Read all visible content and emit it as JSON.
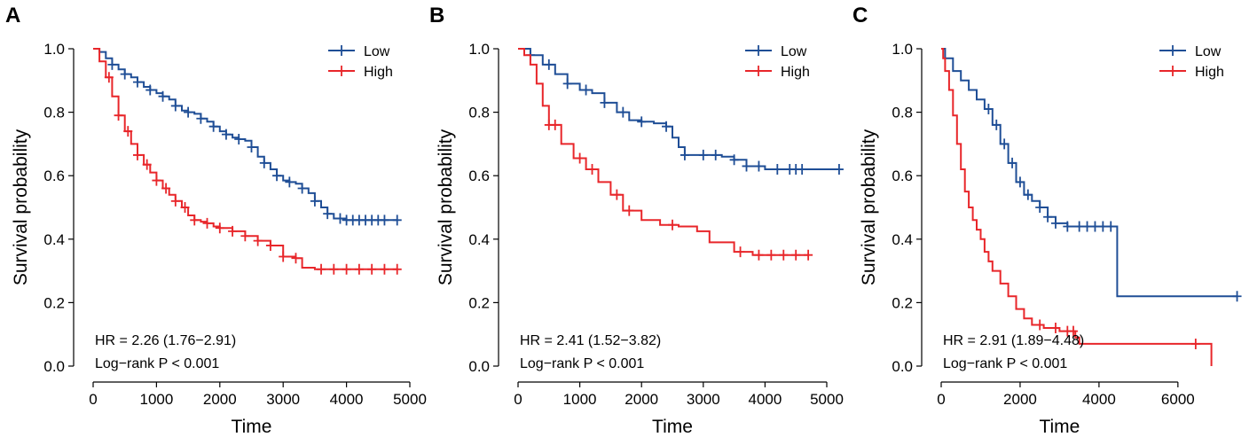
{
  "figure": {
    "panel_labels": [
      "A",
      "B",
      "C"
    ],
    "colors": {
      "low": "#1f4e96",
      "high": "#e8262a",
      "axis": "#000000"
    }
  },
  "chart_data": [
    {
      "type": "line",
      "panel": "A",
      "title": "",
      "xlabel": "Time",
      "ylabel": "Survival probability",
      "xlim": [
        0,
        5000
      ],
      "ylim": [
        0,
        1.0
      ],
      "xticks": [
        0,
        1000,
        2000,
        3000,
        4000,
        5000
      ],
      "yticks": [
        0.0,
        0.2,
        0.4,
        0.6,
        0.8,
        1.0
      ],
      "xtick_labels": [
        "0",
        "1000",
        "2000",
        "3000",
        "4000",
        "5000"
      ],
      "ytick_labels": [
        "0.0",
        "0.2",
        "0.4",
        "0.6",
        "0.8",
        "1.0"
      ],
      "legend": {
        "position": "top-right",
        "entries": [
          "Low",
          "High"
        ]
      },
      "annotations": [
        "HR = 2.26 (1.76−2.91)",
        "Log−rank P < 0.001"
      ],
      "series": [
        {
          "name": "Low",
          "x": [
            0,
            100,
            200,
            300,
            400,
            500,
            600,
            700,
            800,
            900,
            1000,
            1100,
            1200,
            1300,
            1400,
            1500,
            1600,
            1700,
            1800,
            1900,
            2000,
            2100,
            2200,
            2300,
            2400,
            2500,
            2600,
            2700,
            2800,
            2900,
            3000,
            3100,
            3200,
            3300,
            3400,
            3500,
            3600,
            3700,
            3800,
            4000,
            4200,
            4800
          ],
          "y": [
            1.0,
            0.99,
            0.97,
            0.95,
            0.935,
            0.92,
            0.91,
            0.895,
            0.88,
            0.87,
            0.86,
            0.85,
            0.84,
            0.82,
            0.805,
            0.8,
            0.795,
            0.78,
            0.77,
            0.755,
            0.74,
            0.73,
            0.72,
            0.715,
            0.71,
            0.69,
            0.66,
            0.64,
            0.62,
            0.6,
            0.585,
            0.58,
            0.575,
            0.56,
            0.545,
            0.52,
            0.5,
            0.48,
            0.465,
            0.46,
            0.46,
            0.46
          ],
          "censor_x": [
            300,
            500,
            700,
            900,
            1100,
            1300,
            1500,
            1700,
            1900,
            2100,
            2300,
            2500,
            2700,
            2900,
            3100,
            3300,
            3500,
            3700,
            3900,
            4000,
            4100,
            4200,
            4300,
            4400,
            4500,
            4600,
            4800
          ]
        },
        {
          "name": "High",
          "x": [
            0,
            100,
            200,
            300,
            400,
            500,
            600,
            700,
            800,
            900,
            1000,
            1100,
            1200,
            1300,
            1400,
            1500,
            1600,
            1700,
            1800,
            1900,
            2000,
            2200,
            2400,
            2600,
            2800,
            3000,
            3200,
            3300,
            3500,
            4000,
            4800
          ],
          "y": [
            1.0,
            0.96,
            0.91,
            0.85,
            0.79,
            0.74,
            0.7,
            0.665,
            0.635,
            0.61,
            0.585,
            0.56,
            0.54,
            0.52,
            0.5,
            0.475,
            0.46,
            0.455,
            0.45,
            0.44,
            0.435,
            0.425,
            0.41,
            0.395,
            0.38,
            0.345,
            0.34,
            0.31,
            0.305,
            0.305,
            0.305
          ],
          "censor_x": [
            250,
            400,
            550,
            700,
            850,
            1000,
            1150,
            1300,
            1450,
            1600,
            1800,
            2000,
            2200,
            2400,
            2600,
            2800,
            3000,
            3200,
            3600,
            3800,
            4000,
            4200,
            4400,
            4600,
            4800
          ]
        }
      ]
    },
    {
      "type": "line",
      "panel": "B",
      "title": "",
      "xlabel": "Time",
      "ylabel": "Survival probability",
      "xlim": [
        0,
        5000
      ],
      "ylim": [
        0,
        1.0
      ],
      "xticks": [
        0,
        1000,
        2000,
        3000,
        4000,
        5000
      ],
      "yticks": [
        0.0,
        0.2,
        0.4,
        0.6,
        0.8,
        1.0
      ],
      "xtick_labels": [
        "0",
        "1000",
        "2000",
        "3000",
        "4000",
        "5000"
      ],
      "ytick_labels": [
        "0.0",
        "0.2",
        "0.4",
        "0.6",
        "0.8",
        "1.0"
      ],
      "legend": {
        "position": "top-right",
        "entries": [
          "Low",
          "High"
        ]
      },
      "annotations": [
        "HR = 2.41 (1.52−3.82)",
        "Log−rank P < 0.001"
      ],
      "series": [
        {
          "name": "Low",
          "x": [
            0,
            200,
            400,
            600,
            800,
            1000,
            1200,
            1400,
            1600,
            1800,
            2000,
            2200,
            2400,
            2500,
            2600,
            2700,
            3000,
            3300,
            3500,
            3700,
            4000,
            4500,
            5200
          ],
          "y": [
            1.0,
            0.98,
            0.95,
            0.92,
            0.89,
            0.87,
            0.86,
            0.83,
            0.8,
            0.775,
            0.77,
            0.765,
            0.755,
            0.72,
            0.69,
            0.665,
            0.665,
            0.66,
            0.65,
            0.63,
            0.62,
            0.62,
            0.62
          ],
          "censor_x": [
            200,
            500,
            800,
            1100,
            1400,
            1700,
            2000,
            2400,
            2700,
            3000,
            3200,
            3500,
            3700,
            3900,
            4200,
            4400,
            4500,
            4600,
            5200
          ]
        },
        {
          "name": "High",
          "x": [
            0,
            100,
            200,
            300,
            400,
            500,
            700,
            900,
            1100,
            1300,
            1500,
            1700,
            2000,
            2300,
            2600,
            2900,
            3100,
            3500,
            3800,
            4000,
            4700
          ],
          "y": [
            1.0,
            0.98,
            0.95,
            0.89,
            0.82,
            0.76,
            0.7,
            0.655,
            0.62,
            0.58,
            0.54,
            0.49,
            0.46,
            0.445,
            0.44,
            0.425,
            0.39,
            0.36,
            0.35,
            0.35,
            0.35
          ],
          "censor_x": [
            500,
            600,
            1000,
            1200,
            1600,
            1800,
            2500,
            3600,
            3900,
            4100,
            4300,
            4500,
            4700
          ]
        }
      ]
    },
    {
      "type": "line",
      "panel": "C",
      "title": "",
      "xlabel": "Time",
      "ylabel": "Survival probability",
      "xlim": [
        0,
        7600
      ],
      "ylim": [
        0,
        1.0
      ],
      "xticks": [
        0,
        2000,
        4000,
        6000
      ],
      "yticks": [
        0.0,
        0.2,
        0.4,
        0.6,
        0.8,
        1.0
      ],
      "xtick_labels": [
        "0",
        "2000",
        "4000",
        "6000"
      ],
      "ytick_labels": [
        "0.0",
        "0.2",
        "0.4",
        "0.6",
        "0.8",
        "1.0"
      ],
      "legend": {
        "position": "top-right",
        "entries": [
          "Low",
          "High"
        ]
      },
      "annotations": [
        "HR = 2.91 (1.89−4.48)",
        "Log−rank P < 0.001"
      ],
      "series": [
        {
          "name": "Low",
          "x": [
            0,
            100,
            300,
            500,
            700,
            900,
            1100,
            1300,
            1500,
            1700,
            1900,
            2100,
            2300,
            2500,
            2700,
            2900,
            3200,
            3500,
            4000,
            4450,
            4460,
            7500
          ],
          "y": [
            1.0,
            0.97,
            0.93,
            0.9,
            0.87,
            0.84,
            0.81,
            0.76,
            0.7,
            0.64,
            0.58,
            0.54,
            0.52,
            0.5,
            0.47,
            0.45,
            0.44,
            0.44,
            0.44,
            0.44,
            0.22,
            0.22
          ],
          "censor_x": [
            1200,
            1400,
            1600,
            1800,
            2000,
            2200,
            2500,
            2700,
            2900,
            3200,
            3500,
            3700,
            3900,
            4100,
            4300,
            7500
          ]
        },
        {
          "name": "High",
          "x": [
            0,
            50,
            100,
            200,
            300,
            400,
            500,
            600,
            700,
            800,
            900,
            1000,
            1100,
            1200,
            1300,
            1500,
            1700,
            1900,
            2100,
            2300,
            2600,
            3000,
            3400,
            3500,
            6800,
            6850
          ],
          "y": [
            1.0,
            0.97,
            0.93,
            0.87,
            0.79,
            0.7,
            0.62,
            0.55,
            0.5,
            0.46,
            0.43,
            0.4,
            0.36,
            0.33,
            0.3,
            0.26,
            0.22,
            0.18,
            0.15,
            0.13,
            0.12,
            0.11,
            0.09,
            0.07,
            0.07,
            0.0
          ],
          "censor_x": [
            2500,
            2900,
            3200,
            3350,
            6450
          ]
        }
      ]
    }
  ]
}
